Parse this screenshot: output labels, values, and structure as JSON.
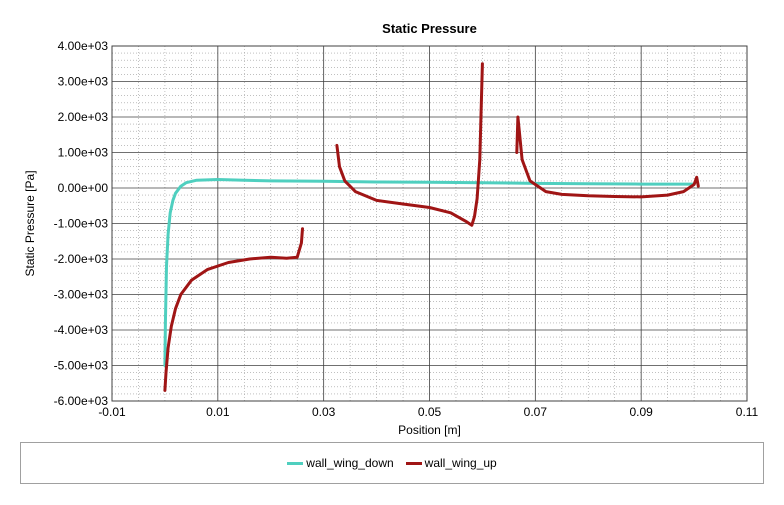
{
  "chart_data": {
    "type": "line",
    "title": "Static Pressure",
    "xlabel": "Position [m]",
    "ylabel": "Static Pressure [Pa]",
    "xlim": [
      -0.01,
      0.11
    ],
    "ylim": [
      -6000,
      4000
    ],
    "x_ticks": [
      -0.01,
      0.01,
      0.03,
      0.05,
      0.07,
      0.09,
      0.11
    ],
    "x_tick_labels": [
      "-0.01",
      "0.01",
      "0.03",
      "0.05",
      "0.07",
      "0.09",
      "0.11"
    ],
    "y_ticks": [
      4000,
      3000,
      2000,
      1000,
      0,
      -1000,
      -2000,
      -3000,
      -4000,
      -5000,
      -6000
    ],
    "y_tick_labels": [
      "4.00e+03",
      "3.00e+03",
      "2.00e+03",
      "1.00e+03",
      "0.00e+00",
      "-1.00e+03",
      "-2.00e+03",
      "-3.00e+03",
      "-4.00e+03",
      "-5.00e+03",
      "-6.00e+03"
    ],
    "grid": true,
    "legend_position": "bottom",
    "series": [
      {
        "name": "wall_wing_down",
        "color": "#4fcfbf",
        "points": [
          [
            0.0,
            -5000
          ],
          [
            0.0001,
            -3800
          ],
          [
            0.0003,
            -2200
          ],
          [
            0.0006,
            -1300
          ],
          [
            0.001,
            -700
          ],
          [
            0.0015,
            -350
          ],
          [
            0.002,
            -150
          ],
          [
            0.003,
            50
          ],
          [
            0.004,
            150
          ],
          [
            0.006,
            220
          ],
          [
            0.01,
            240
          ],
          [
            0.015,
            220
          ],
          [
            0.02,
            200
          ],
          [
            0.03,
            190
          ],
          [
            0.04,
            170
          ],
          [
            0.05,
            160
          ],
          [
            0.06,
            150
          ],
          [
            0.07,
            130
          ],
          [
            0.08,
            120
          ],
          [
            0.09,
            110
          ],
          [
            0.1,
            110
          ]
        ]
      },
      {
        "name": "wall_wing_up",
        "color": "#a01515",
        "segments": [
          [
            [
              0.0,
              -5700
            ],
            [
              0.0002,
              -5200
            ],
            [
              0.0006,
              -4500
            ],
            [
              0.0012,
              -3900
            ],
            [
              0.002,
              -3400
            ],
            [
              0.003,
              -3000
            ],
            [
              0.005,
              -2600
            ],
            [
              0.008,
              -2300
            ],
            [
              0.012,
              -2100
            ],
            [
              0.016,
              -2000
            ],
            [
              0.02,
              -1950
            ],
            [
              0.023,
              -1980
            ],
            [
              0.025,
              -1950
            ],
            [
              0.0258,
              -1550
            ],
            [
              0.026,
              -1150
            ]
          ],
          [
            [
              0.0325,
              1200
            ],
            [
              0.033,
              600
            ],
            [
              0.034,
              200
            ],
            [
              0.036,
              -100
            ],
            [
              0.04,
              -350
            ],
            [
              0.045,
              -450
            ],
            [
              0.05,
              -550
            ],
            [
              0.054,
              -700
            ],
            [
              0.057,
              -950
            ],
            [
              0.058,
              -1050
            ],
            [
              0.0585,
              -800
            ],
            [
              0.059,
              -300
            ],
            [
              0.0595,
              800
            ],
            [
              0.06,
              3500
            ]
          ],
          [
            [
              0.0665,
              1000
            ],
            [
              0.0667,
              2000
            ],
            [
              0.0675,
              800
            ],
            [
              0.069,
              200
            ],
            [
              0.072,
              -100
            ],
            [
              0.075,
              -180
            ],
            [
              0.08,
              -220
            ],
            [
              0.085,
              -240
            ],
            [
              0.09,
              -250
            ],
            [
              0.095,
              -200
            ],
            [
              0.098,
              -100
            ],
            [
              0.1,
              100
            ],
            [
              0.1005,
              300
            ],
            [
              0.1008,
              50
            ]
          ]
        ]
      }
    ]
  }
}
